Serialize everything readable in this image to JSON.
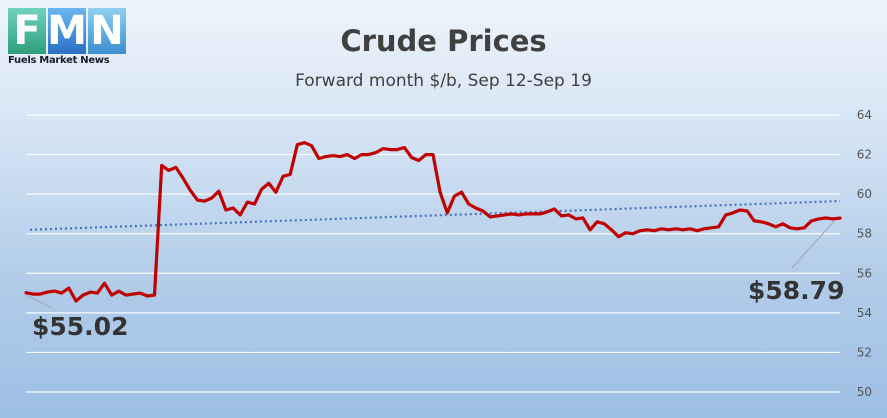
{
  "logo": {
    "letters": [
      "F",
      "M",
      "N"
    ],
    "text": "Fuels Market News",
    "colors": [
      "#3fae8e",
      "#3a7fd6",
      "#4aa3df"
    ]
  },
  "chart_data": {
    "type": "line",
    "title": "Crude Prices",
    "subtitle": "Forward month $/b, Sep 12-Sep 19",
    "xlabel": "",
    "ylabel": "",
    "ylim": [
      50,
      64
    ],
    "yticks": [
      "50",
      "52",
      "54",
      "56",
      "58",
      "60",
      "62",
      "64"
    ],
    "grid": true,
    "series": [
      {
        "color": "#c00000",
        "values": [
          55.02,
          54.95,
          54.95,
          55.05,
          55.1,
          55.0,
          55.25,
          54.6,
          54.9,
          55.05,
          55.0,
          55.5,
          54.9,
          55.1,
          54.9,
          54.95,
          55.0,
          54.85,
          54.9,
          61.45,
          61.2,
          61.35,
          60.8,
          60.2,
          59.7,
          59.65,
          59.8,
          60.15,
          59.2,
          59.3,
          58.95,
          59.6,
          59.5,
          60.25,
          60.55,
          60.1,
          60.9,
          61.0,
          62.5,
          62.6,
          62.45,
          61.8,
          61.9,
          61.95,
          61.9,
          62.0,
          61.8,
          62.0,
          62.0,
          62.1,
          62.3,
          62.25,
          62.25,
          62.35,
          61.85,
          61.7,
          62.0,
          62.0,
          60.1,
          59.05,
          59.9,
          60.1,
          59.5,
          59.3,
          59.15,
          58.85,
          58.9,
          58.95,
          59.0,
          58.95,
          59.0,
          59.0,
          59.0,
          59.1,
          59.25,
          58.9,
          58.95,
          58.75,
          58.8,
          58.2,
          58.6,
          58.5,
          58.2,
          57.85,
          58.05,
          58.0,
          58.15,
          58.2,
          58.15,
          58.25,
          58.2,
          58.25,
          58.2,
          58.25,
          58.15,
          58.25,
          58.3,
          58.35,
          58.95,
          59.05,
          59.2,
          59.15,
          58.65,
          58.6,
          58.5,
          58.35,
          58.5,
          58.3,
          58.25,
          58.3,
          58.65,
          58.75,
          58.8,
          58.75,
          58.79
        ]
      },
      {
        "color": "#4472c4",
        "trendline": true,
        "values": [
          58.2,
          59.65
        ]
      }
    ],
    "annotations": [
      "$55.02",
      "$58.79"
    ]
  }
}
